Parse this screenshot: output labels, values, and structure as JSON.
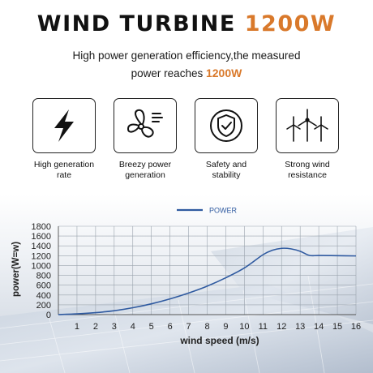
{
  "header": {
    "title_main": "WIND TURBINE",
    "title_accent": "1200W",
    "subtitle_line1": "High power generation efficiency,the measured",
    "subtitle_line2_prefix": "power reaches",
    "subtitle_line2_highlight": "1200W"
  },
  "features": [
    {
      "label_line1": "High generation",
      "label_line2": "rate",
      "icon": "lightning-bolt-icon"
    },
    {
      "label_line1": "Breezy power",
      "label_line2": "generation",
      "icon": "fan-icon"
    },
    {
      "label_line1": "Safety and",
      "label_line2": "stability",
      "icon": "shield-check-icon"
    },
    {
      "label_line1": "Strong wind",
      "label_line2": "resistance",
      "icon": "wind-turbines-icon"
    }
  ],
  "colors": {
    "accent": "#d9792b",
    "line": "#2f5aa0"
  },
  "chart_data": {
    "type": "line",
    "title": "",
    "xlabel": "wind speed (m/s)",
    "ylabel": "power(W=w)",
    "xlim": [
      0,
      16
    ],
    "ylim": [
      0,
      1800
    ],
    "x_ticks": [
      1,
      2,
      3,
      4,
      5,
      6,
      7,
      8,
      9,
      10,
      11,
      12,
      13,
      14,
      15,
      16
    ],
    "y_ticks": [
      0,
      200,
      400,
      600,
      800,
      1000,
      1200,
      1400,
      1600,
      1800
    ],
    "legend": "top-center",
    "grid": true,
    "series": [
      {
        "name": "POWER",
        "x": [
          0,
          1,
          2,
          3,
          4,
          5,
          6,
          7,
          8,
          9,
          10,
          11,
          11.5,
          12,
          12.5,
          13,
          13.5,
          14,
          15,
          16
        ],
        "y": [
          0,
          15,
          40,
          80,
          140,
          220,
          320,
          440,
          580,
          750,
          950,
          1220,
          1310,
          1350,
          1340,
          1290,
          1205,
          1205,
          1200,
          1195
        ]
      }
    ]
  }
}
